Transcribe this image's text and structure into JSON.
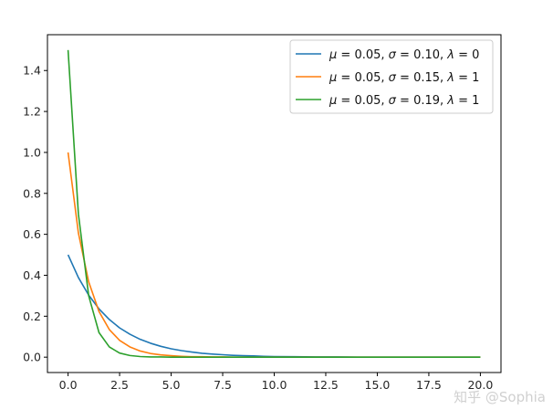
{
  "chart_data": {
    "type": "line",
    "title": "",
    "xlabel": "",
    "ylabel": "",
    "xlim": [
      -1.0,
      21.0
    ],
    "ylim": [
      -0.075,
      1.575
    ],
    "xticks": [
      0.0,
      2.5,
      5.0,
      7.5,
      10.0,
      12.5,
      15.0,
      17.5,
      20.0
    ],
    "xtick_labels": [
      "0.0",
      "2.5",
      "5.0",
      "7.5",
      "10.0",
      "12.5",
      "15.0",
      "17.5",
      "20.0"
    ],
    "yticks": [
      0.0,
      0.2,
      0.4,
      0.6,
      0.8,
      1.0,
      1.2,
      1.4
    ],
    "ytick_labels": [
      "0.0",
      "0.2",
      "0.4",
      "0.6",
      "0.8",
      "1.0",
      "1.2",
      "1.4"
    ],
    "grid": false,
    "legend_position": "top-right",
    "x": [
      0.0,
      0.5,
      1.0,
      1.5,
      2.0,
      2.5,
      3.0,
      3.5,
      4.0,
      4.5,
      5.0,
      5.5,
      6.0,
      6.5,
      7.0,
      7.5,
      8.0,
      8.5,
      9.0,
      9.5,
      10.0,
      11.0,
      12.0,
      13.0,
      14.0,
      15.0,
      16.0,
      17.0,
      18.0,
      19.0,
      20.0
    ],
    "series": [
      {
        "name": "μ = 0.05,  σ = 0.10,  λ = 0",
        "color": "#1f77b4",
        "values": [
          0.5,
          0.389,
          0.303,
          0.236,
          0.184,
          0.143,
          0.112,
          0.087,
          0.068,
          0.053,
          0.041,
          0.032,
          0.025,
          0.019,
          0.015,
          0.012,
          0.009,
          0.007,
          0.006,
          0.004,
          0.003,
          0.002,
          0.001,
          0.001,
          0.0,
          0.0,
          0.0,
          0.0,
          0.0,
          0.0,
          0.0
        ]
      },
      {
        "name": "μ = 0.05,  σ = 0.15,  λ = 1",
        "color": "#ff7f0e",
        "values": [
          1.0,
          0.607,
          0.368,
          0.223,
          0.135,
          0.082,
          0.05,
          0.03,
          0.018,
          0.011,
          0.007,
          0.004,
          0.002,
          0.002,
          0.001,
          0.001,
          0.0,
          0.0,
          0.0,
          0.0,
          0.0,
          0.0,
          0.0,
          0.0,
          0.0,
          0.0,
          0.0,
          0.0,
          0.0,
          0.0,
          0.0
        ]
      },
      {
        "name": "μ = 0.05,  σ = 0.19,  λ = 1",
        "color": "#2ca02c",
        "values": [
          1.5,
          0.7,
          0.3,
          0.12,
          0.05,
          0.02,
          0.008,
          0.003,
          0.001,
          0.001,
          0.0,
          0.0,
          0.0,
          0.0,
          0.0,
          0.0,
          0.0,
          0.0,
          0.0,
          0.0,
          0.0,
          0.0,
          0.0,
          0.0,
          0.0,
          0.0,
          0.0,
          0.0,
          0.0,
          0.0,
          0.0
        ]
      }
    ]
  },
  "legend": {
    "entries": [
      {
        "mu": "μ",
        "mu_val": " = 0.05,  ",
        "sigma": "σ",
        "sigma_val": " = 0.10,  ",
        "lambda": "λ",
        "lambda_val": " = 0"
      },
      {
        "mu": "μ",
        "mu_val": " = 0.05,  ",
        "sigma": "σ",
        "sigma_val": " = 0.15,  ",
        "lambda": "λ",
        "lambda_val": " = 1"
      },
      {
        "mu": "μ",
        "mu_val": " = 0.05,  ",
        "sigma": "σ",
        "sigma_val": " = 0.19,  ",
        "lambda": "λ",
        "lambda_val": " = 1"
      }
    ]
  },
  "watermark": {
    "text": "知乎 @Sophia"
  }
}
